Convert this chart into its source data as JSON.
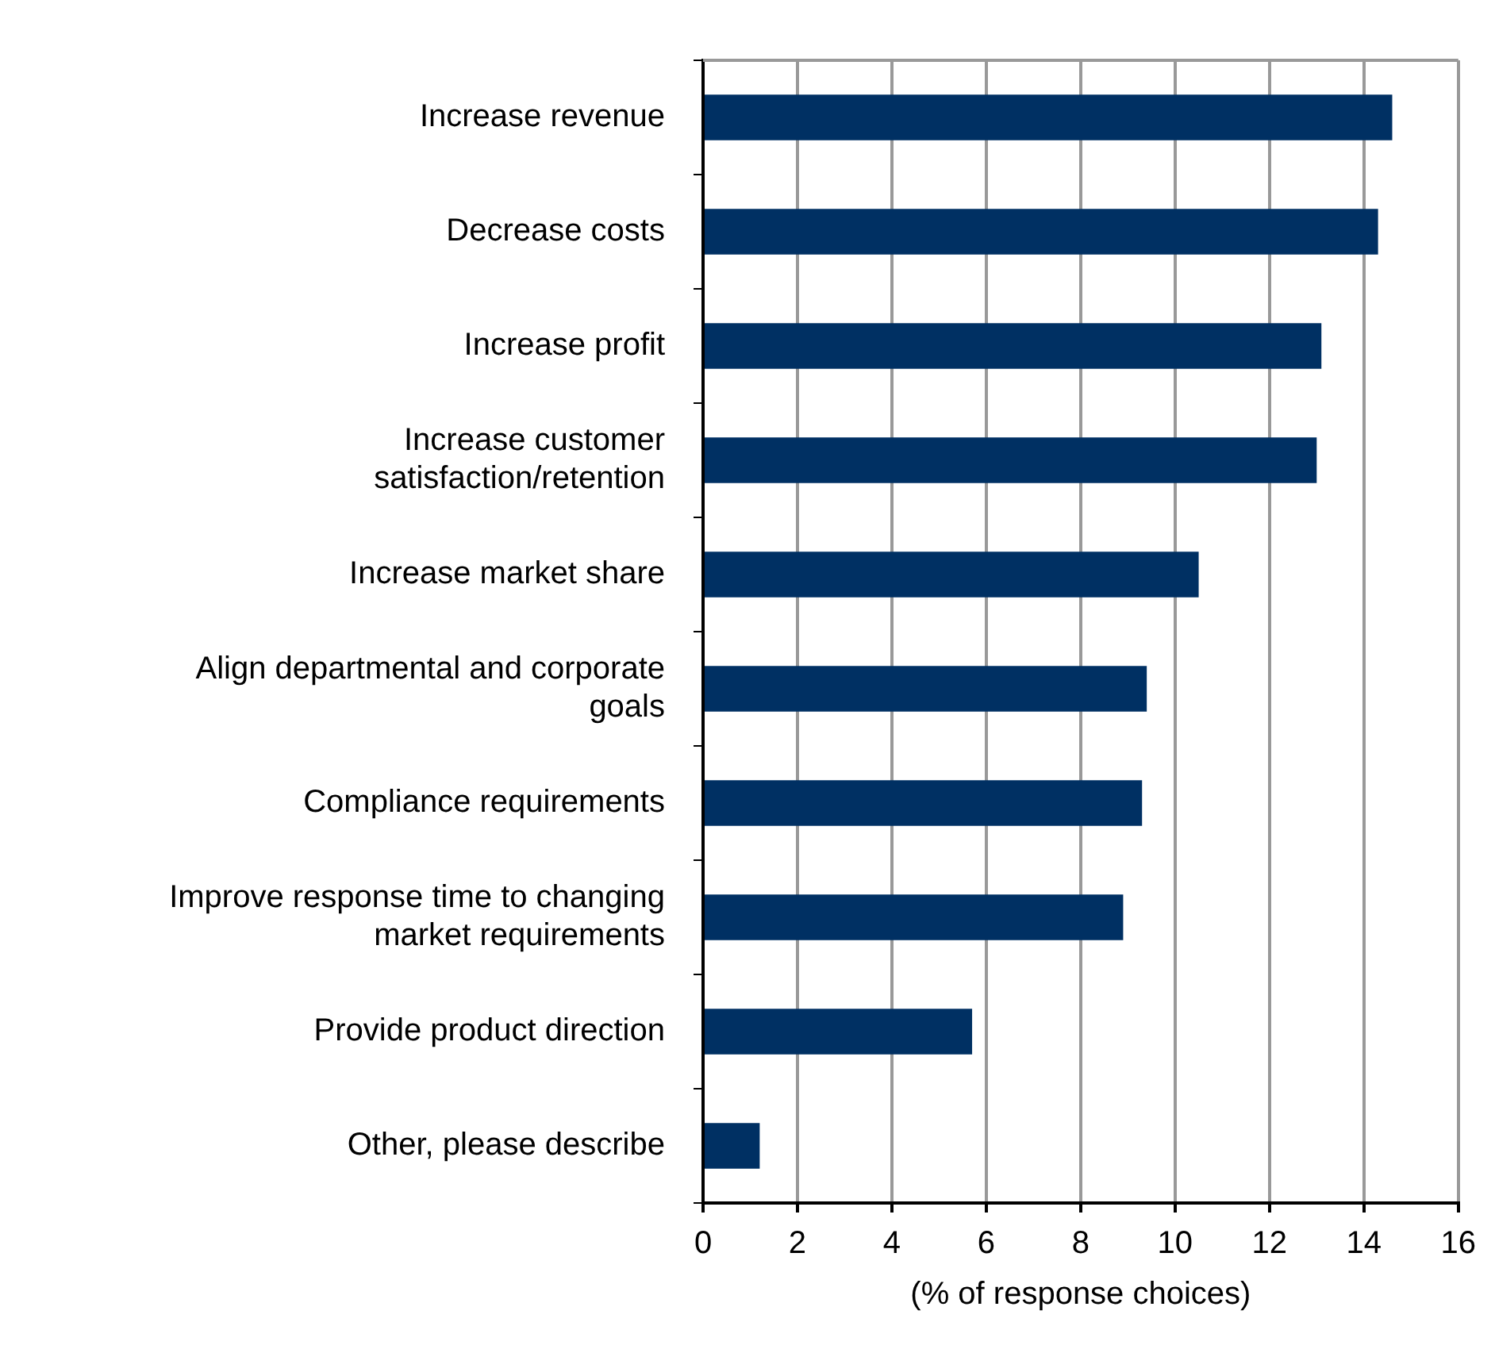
{
  "chart_data": {
    "type": "bar",
    "orientation": "horizontal",
    "xlabel": "(% of response choices)",
    "categories": [
      "Increase revenue",
      "Decrease costs",
      "Increase profit",
      "Increase customer\nsatisfaction/retention",
      "Increase market share",
      "Align departmental and corporate\ngoals",
      "Compliance requirements",
      "Improve response time to changing\nmarket requirements",
      "Provide product direction",
      "Other, please describe"
    ],
    "values": [
      14.6,
      14.3,
      13.1,
      13.0,
      10.5,
      9.4,
      9.3,
      8.9,
      5.7,
      1.2
    ],
    "color": "#003063",
    "xlim": [
      0,
      16
    ],
    "xticks": [
      0,
      2,
      4,
      6,
      8,
      10,
      12,
      14,
      16
    ],
    "grid": "x",
    "legend": false
  }
}
